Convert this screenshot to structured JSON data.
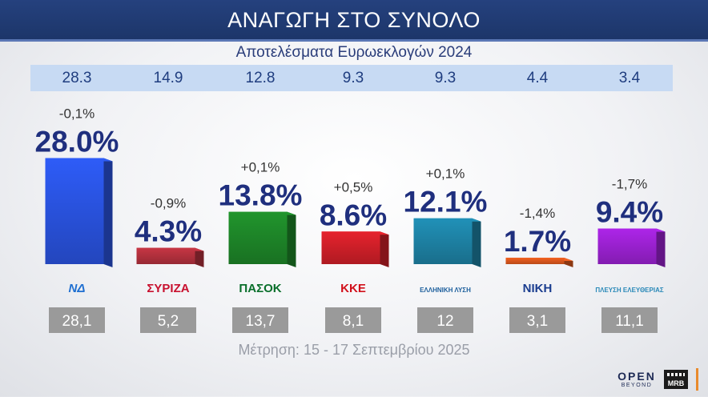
{
  "header": {
    "title": "ΑΝΑΓΩΓΗ ΣΤΟ ΣΥΝΟΛΟ"
  },
  "subtitle": "Αποτελέσματα Ευρωεκλογών 2024",
  "footer": {
    "note": "Μέτρηση: 15 - 17 Σεπτεμβρίου 2025"
  },
  "branding": {
    "open": "OPEN",
    "open_sub": "BEYOND",
    "mrb": "MRB"
  },
  "chart_data": {
    "type": "bar",
    "title": "ΑΝΑΓΩΓΗ ΣΤΟ ΣΥΝΟΛΟ",
    "categories": [
      "ΝΔ",
      "ΣΥΡΙΖΑ",
      "ΠΑΣΟΚ",
      "ΚΚΕ",
      "ΕΛΛΗΝΙΚΗ ΛΥΣΗ",
      "ΝΙΚΗ",
      "ΠΛΕΥΣΗ ΕΛΕΥΘΕΡΙΑΣ"
    ],
    "category_logos": [
      {
        "text": "ΝΔ",
        "color": "#1f6fd1"
      },
      {
        "text": "ΣΥΡΙΖΑ",
        "color": "#c8102e"
      },
      {
        "text": "ΠΑΣΟΚ",
        "color": "#0a6f2b"
      },
      {
        "text": "ΚΚΕ",
        "color": "#d1101b"
      },
      {
        "text": "ΕΛΛΗΝΙΚΗ ΛΥΣΗ",
        "color": "#1c5e9c"
      },
      {
        "text": "ΝΙΚΗ",
        "color": "#1a3d8f"
      },
      {
        "text": "ΠΛΕΥΣΗ ΕΛΕΥΘΕΡΙΑΣ",
        "color": "#2a89b8"
      }
    ],
    "series": [
      {
        "values": [
          28.0,
          4.3,
          13.8,
          8.6,
          12.1,
          1.7,
          9.4
        ]
      }
    ],
    "value_labels": [
      "28.0%",
      "4.3%",
      "13.8%",
      "8.6%",
      "12.1%",
      "1.7%",
      "9.4%"
    ],
    "change_labels": [
      "-0,1%",
      "-0,9%",
      "+0,1%",
      "+0,5%",
      "+0,1%",
      "-1,4%",
      "-1,7%"
    ],
    "euro_2024_results": [
      "28.3",
      "14.9",
      "12.8",
      "9.3",
      "9.3",
      "4.4",
      "3.4"
    ],
    "previous_poll": [
      "28,1",
      "5,2",
      "13,7",
      "8,1",
      "12",
      "3,1",
      "11,1"
    ],
    "colors": [
      "#2b55e6",
      "#b8323f",
      "#1f8a2a",
      "#d5202a",
      "#1f86aa",
      "#e25a1e",
      "#a022d8"
    ],
    "ylim": [
      0,
      30
    ],
    "grid": false,
    "legend": "none"
  }
}
